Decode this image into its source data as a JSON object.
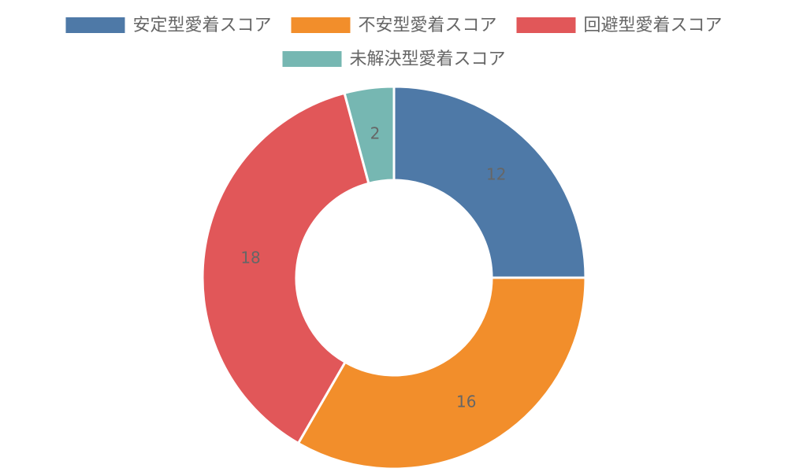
{
  "chart_data": {
    "type": "doughnut",
    "categories": [
      "安定型愛着スコア",
      "不安型愛着スコア",
      "回避型愛着スコア",
      "未解決型愛着スコア"
    ],
    "values": [
      12,
      16,
      18,
      2
    ],
    "colors": [
      "#4e79a7",
      "#f28e2b",
      "#e15759",
      "#76b7b2"
    ],
    "legend": "top"
  }
}
